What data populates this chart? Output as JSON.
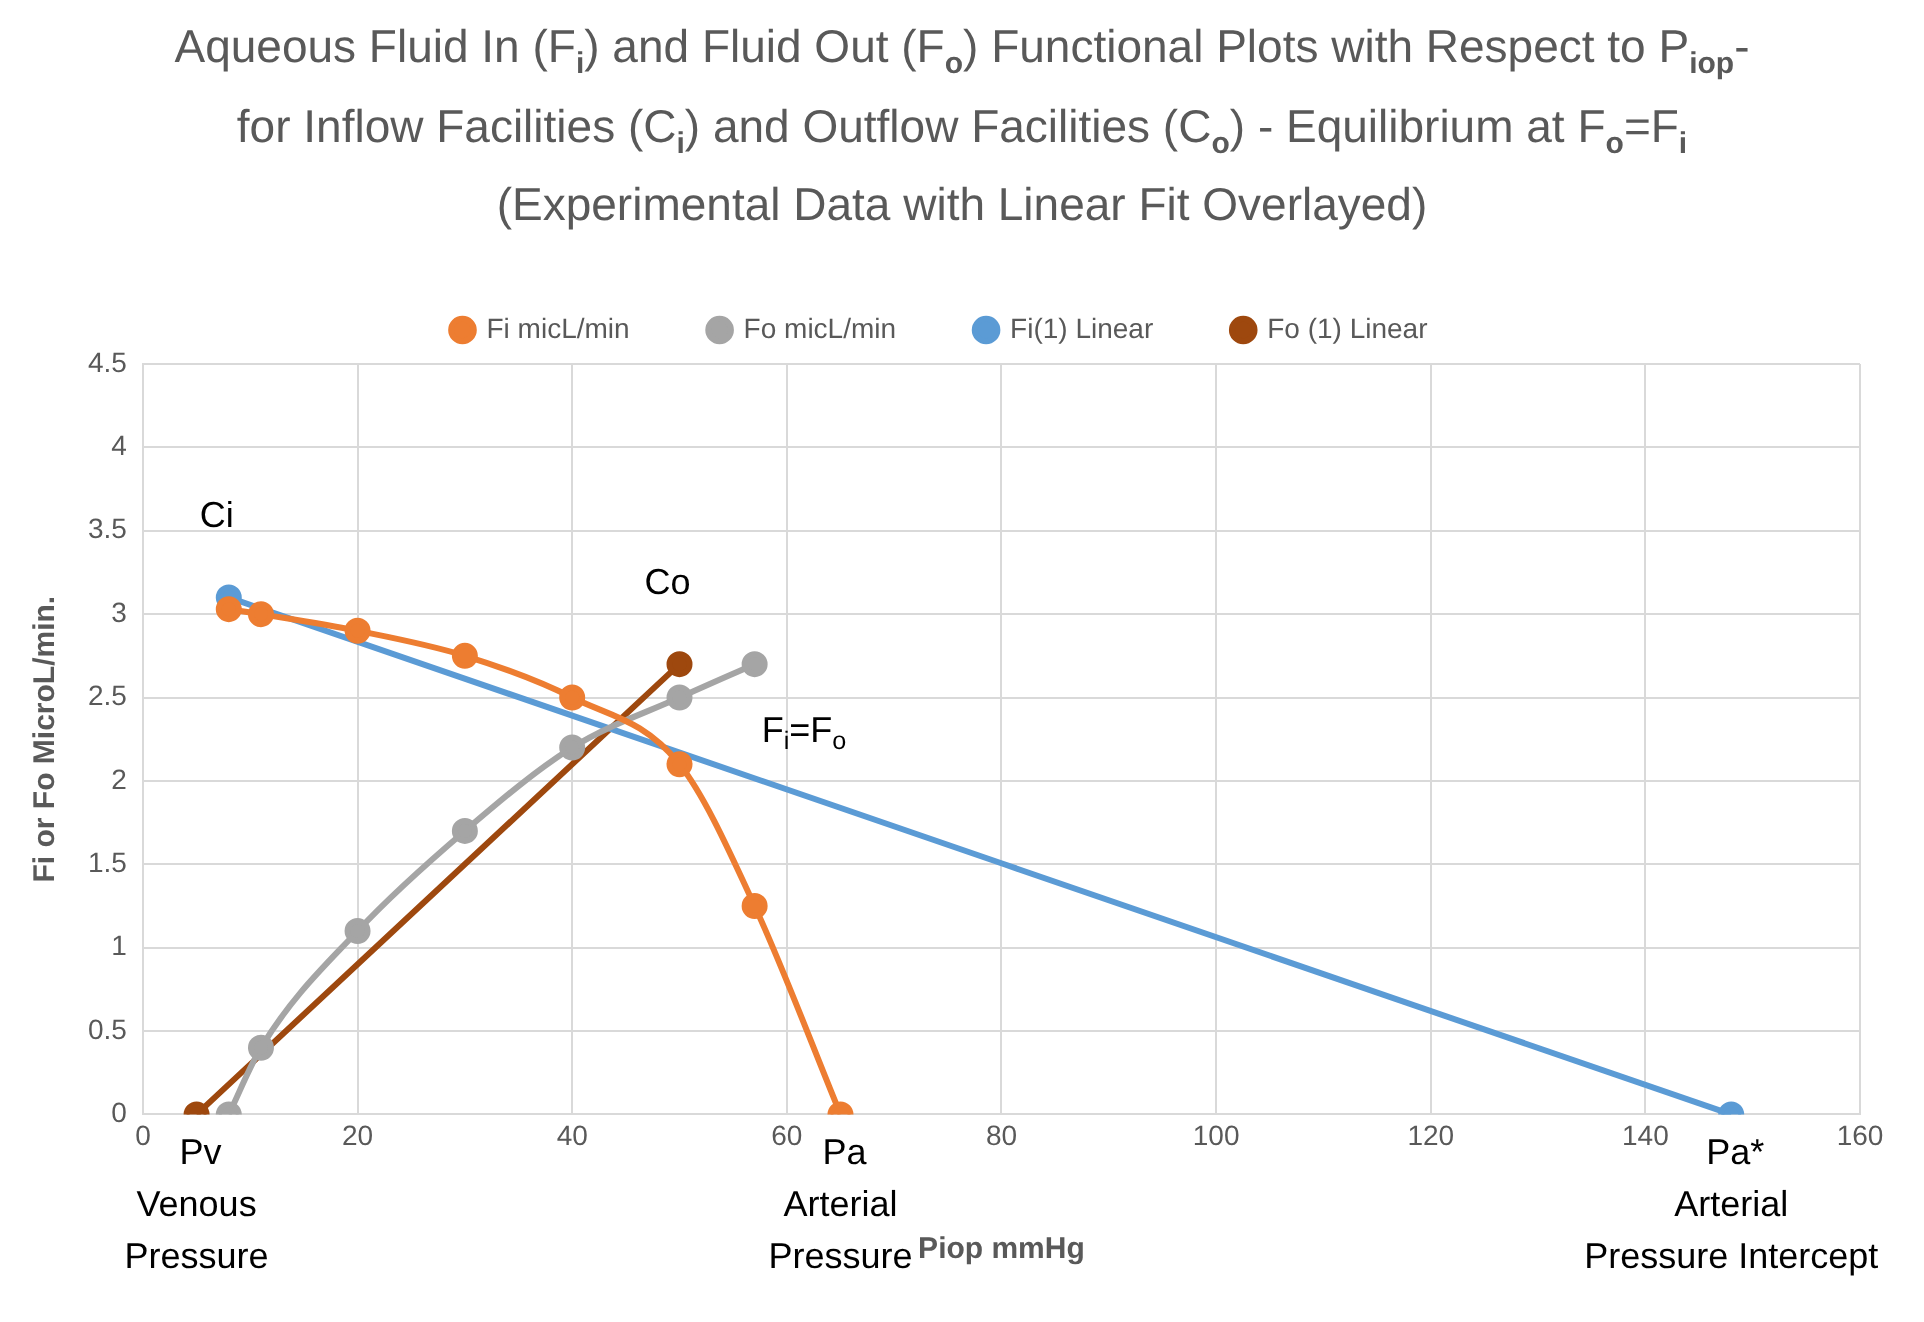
{
  "chart_data": {
    "type": "line",
    "title": "Aqueous Fluid In (F$_{i}$) and Fluid Out (F$_{o}$) Functional Plots with Respect to P$_{iop}$- for Inflow Facilities (C$_{i}$) and Outflow Facilities (C$_{o}$) - Equilibrium at F$_{o}$=F$_{i}$  (Experimental Data with Linear Fit Overlayed)",
    "xlabel": "Piop mmHg",
    "ylabel": "Fi or Fo MicroL/min.",
    "xlim": [
      0,
      160
    ],
    "xticks": [
      0,
      20,
      40,
      60,
      80,
      100,
      120,
      140,
      160
    ],
    "ylim": [
      0,
      4.5
    ],
    "yticks": [
      0,
      0.5,
      1,
      1.5,
      2,
      2.5,
      3,
      3.5,
      4,
      4.5
    ],
    "grid": true,
    "legend": "top",
    "marker": "circle",
    "series": [
      {
        "name": "Fi micL/min",
        "color": "#ed7d31",
        "x": [
          8,
          11,
          20,
          30,
          40,
          50,
          57,
          65
        ],
        "values": [
          3.03,
          3.0,
          2.9,
          2.75,
          2.5,
          2.1,
          1.25,
          0
        ]
      },
      {
        "name": "Fo micL/min",
        "color": "#a5a5a5",
        "x": [
          8,
          11,
          20,
          30,
          40,
          50,
          57
        ],
        "values": [
          0,
          0.4,
          1.1,
          1.7,
          2.2,
          2.5,
          2.7
        ]
      },
      {
        "name": "Fi(1) Linear",
        "color": "#5b9bd5",
        "x": [
          8,
          148
        ],
        "values": [
          3.1,
          0
        ]
      },
      {
        "name": "Fo (1) Linear",
        "color": "#9e480e",
        "x": [
          5,
          50
        ],
        "values": [
          0,
          2.7
        ]
      }
    ],
    "annotations": [
      {
        "text": "Ci",
        "x": 8,
        "y": 3.1
      },
      {
        "text": "Co",
        "x": 50,
        "y": 2.7
      },
      "F$_{i}$=F$_{o}$",
      {
        "text": "Pv\nVenous\nPressure",
        "x": 5,
        "y": 0
      },
      {
        "text": "Pa\nArterial\nPressure",
        "x": 65,
        "y": 0
      },
      {
        "text": "Pa*\nArterial\nPressure Intercept",
        "x": 148,
        "y": 0
      }
    ]
  }
}
